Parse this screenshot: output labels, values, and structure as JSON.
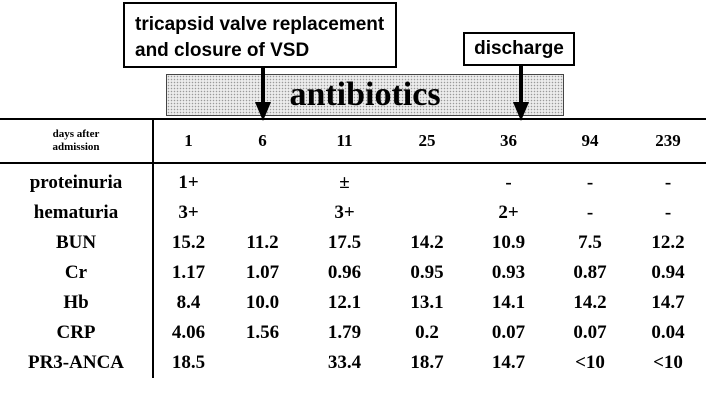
{
  "annotations": {
    "tricuspid_line1": "tricapsid valve replacement",
    "tricuspid_line2": "and closure of VSD",
    "discharge": "discharge",
    "antibiotics": "antibiotics"
  },
  "table": {
    "header_label_line1": "days after",
    "header_label_line2": "admission",
    "days": [
      "1",
      "6",
      "11",
      "25",
      "36",
      "94",
      "239"
    ],
    "rows": [
      {
        "label": "proteinuria",
        "values": [
          "1+",
          "",
          "±",
          "",
          "-",
          "-",
          "-"
        ]
      },
      {
        "label": "hematuria",
        "values": [
          "3+",
          "",
          "3+",
          "",
          "2+",
          "-",
          "-"
        ]
      },
      {
        "label": "BUN",
        "values": [
          "15.2",
          "11.2",
          "17.5",
          "14.2",
          "10.9",
          "7.5",
          "12.2"
        ]
      },
      {
        "label": "Cr",
        "values": [
          "1.17",
          "1.07",
          "0.96",
          "0.95",
          "0.93",
          "0.87",
          "0.94"
        ]
      },
      {
        "label": "Hb",
        "values": [
          "8.4",
          "10.0",
          "12.1",
          "13.1",
          "14.1",
          "14.2",
          "14.7"
        ]
      },
      {
        "label": "CRP",
        "values": [
          "4.06",
          "1.56",
          "1.79",
          "0.2",
          "0.07",
          "0.07",
          "0.04"
        ]
      },
      {
        "label": "PR3-ANCA",
        "values": [
          "18.5",
          "",
          "33.4",
          "18.7",
          "14.7",
          "<10",
          "<10"
        ]
      }
    ]
  }
}
